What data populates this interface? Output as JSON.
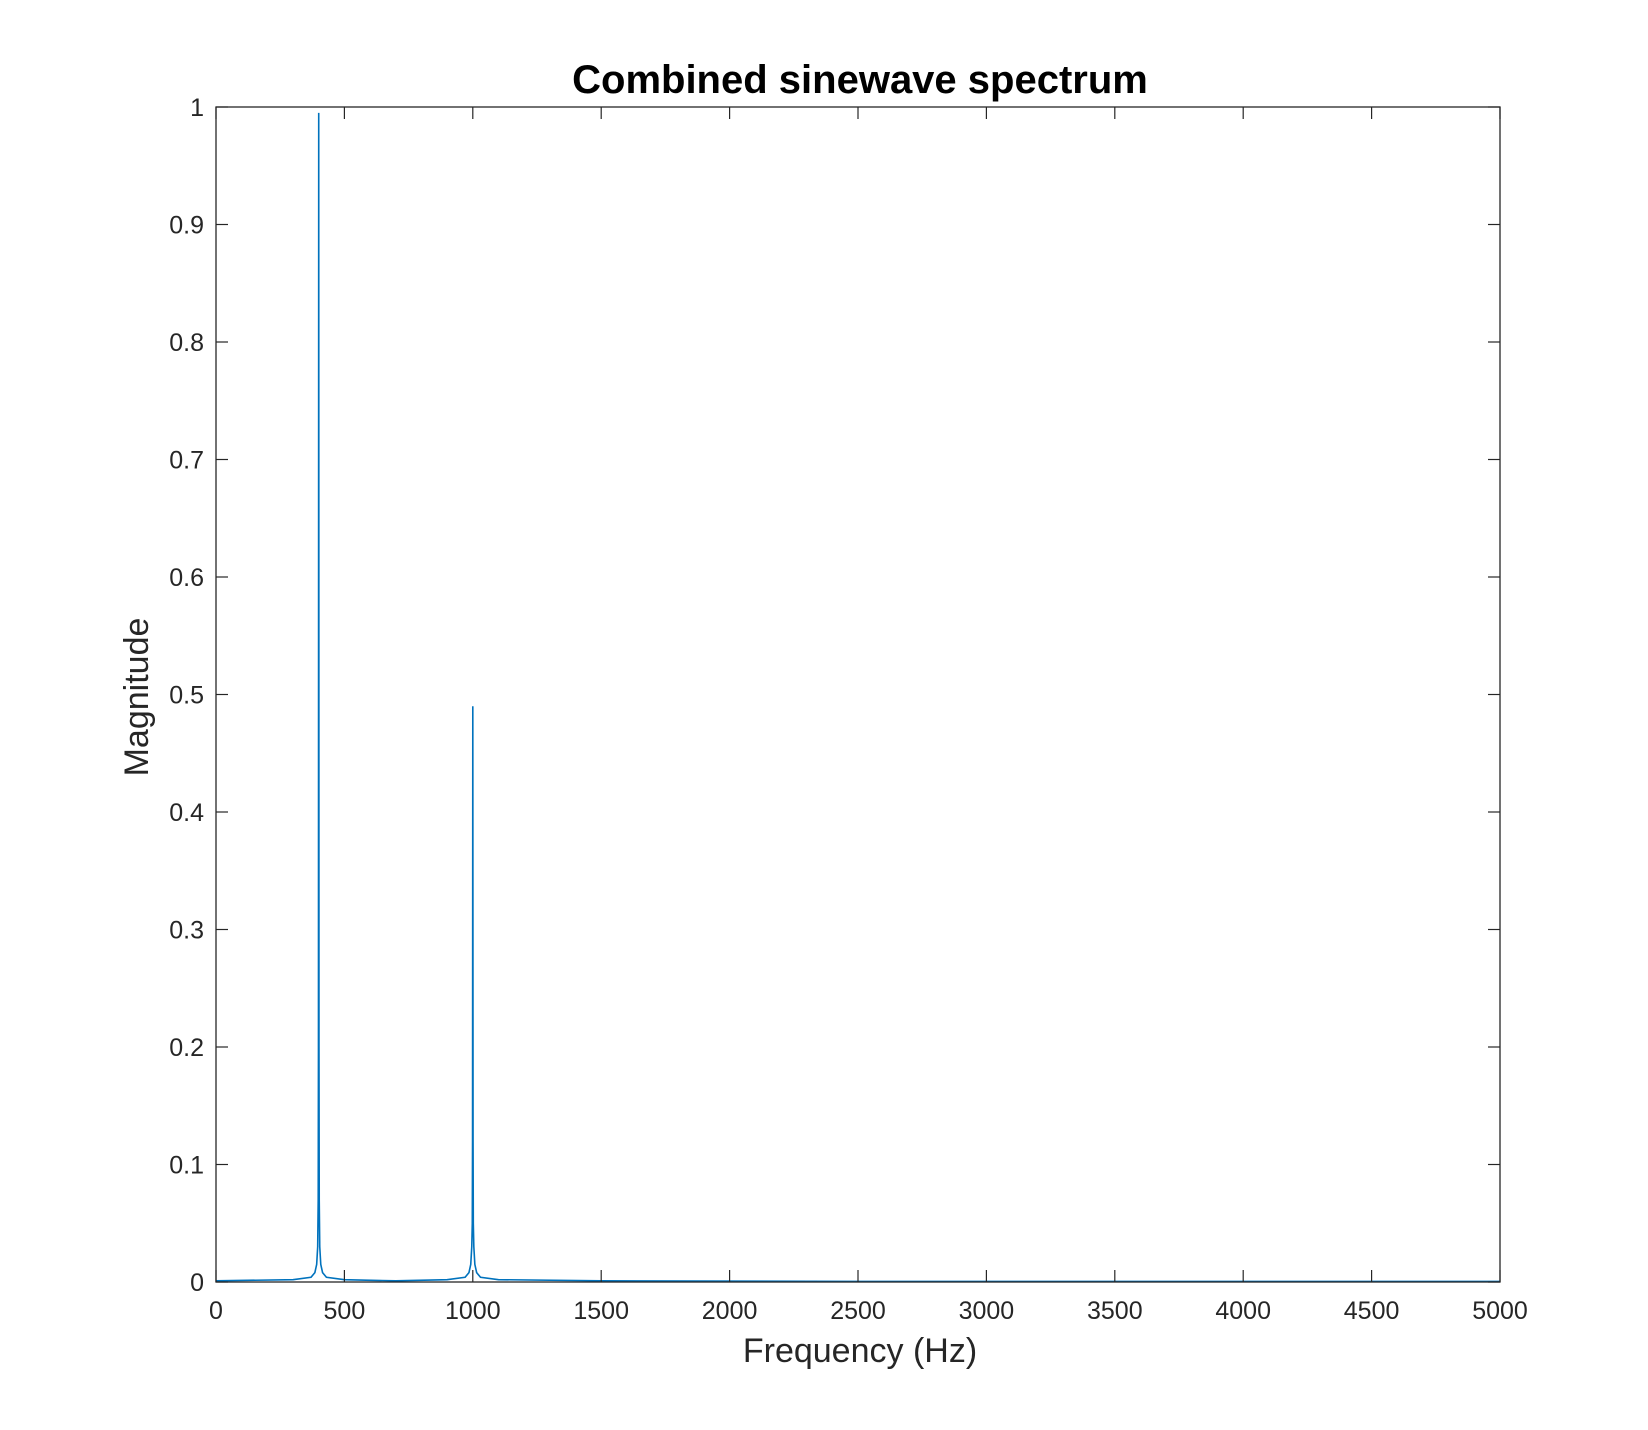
{
  "chart_data": {
    "type": "line",
    "title": "Combined sinewave spectrum",
    "xlabel": "Frequency (Hz)",
    "ylabel": "Magnitude",
    "xlim": [
      0,
      5000
    ],
    "ylim": [
      0,
      1
    ],
    "xticks": [
      0,
      500,
      1000,
      1500,
      2000,
      2500,
      3000,
      3500,
      4000,
      4500,
      5000
    ],
    "yticks": [
      0,
      0.1,
      0.2,
      0.3,
      0.4,
      0.5,
      0.6,
      0.7,
      0.8,
      0.9,
      1
    ],
    "xtick_labels": [
      "0",
      "500",
      "1000",
      "1500",
      "2000",
      "2500",
      "3000",
      "3500",
      "4000",
      "4500",
      "5000"
    ],
    "ytick_labels": [
      "0",
      "0.1",
      "0.2",
      "0.3",
      "0.4",
      "0.5",
      "0.6",
      "0.7",
      "0.8",
      "0.9",
      "1"
    ],
    "grid": false,
    "line_color": "#0072BD",
    "axis_color": "#262626",
    "series": [
      {
        "x": [
          0,
          300,
          370,
          385,
          392,
          396,
          398,
          399,
          400,
          401,
          402,
          404,
          408,
          415,
          430,
          500,
          700,
          900,
          970,
          985,
          992,
          996,
          998,
          999,
          1000,
          1001,
          1002,
          1004,
          1008,
          1015,
          1030,
          1100,
          1500,
          2500,
          3500,
          5000
        ],
        "y": [
          0.001,
          0.002,
          0.004,
          0.008,
          0.015,
          0.03,
          0.07,
          0.2,
          0.995,
          0.2,
          0.07,
          0.03,
          0.015,
          0.008,
          0.004,
          0.002,
          0.001,
          0.002,
          0.004,
          0.008,
          0.015,
          0.03,
          0.05,
          0.12,
          0.49,
          0.12,
          0.05,
          0.03,
          0.015,
          0.008,
          0.004,
          0.002,
          0.001,
          0.0005,
          0.0005,
          0.0005
        ]
      }
    ]
  }
}
